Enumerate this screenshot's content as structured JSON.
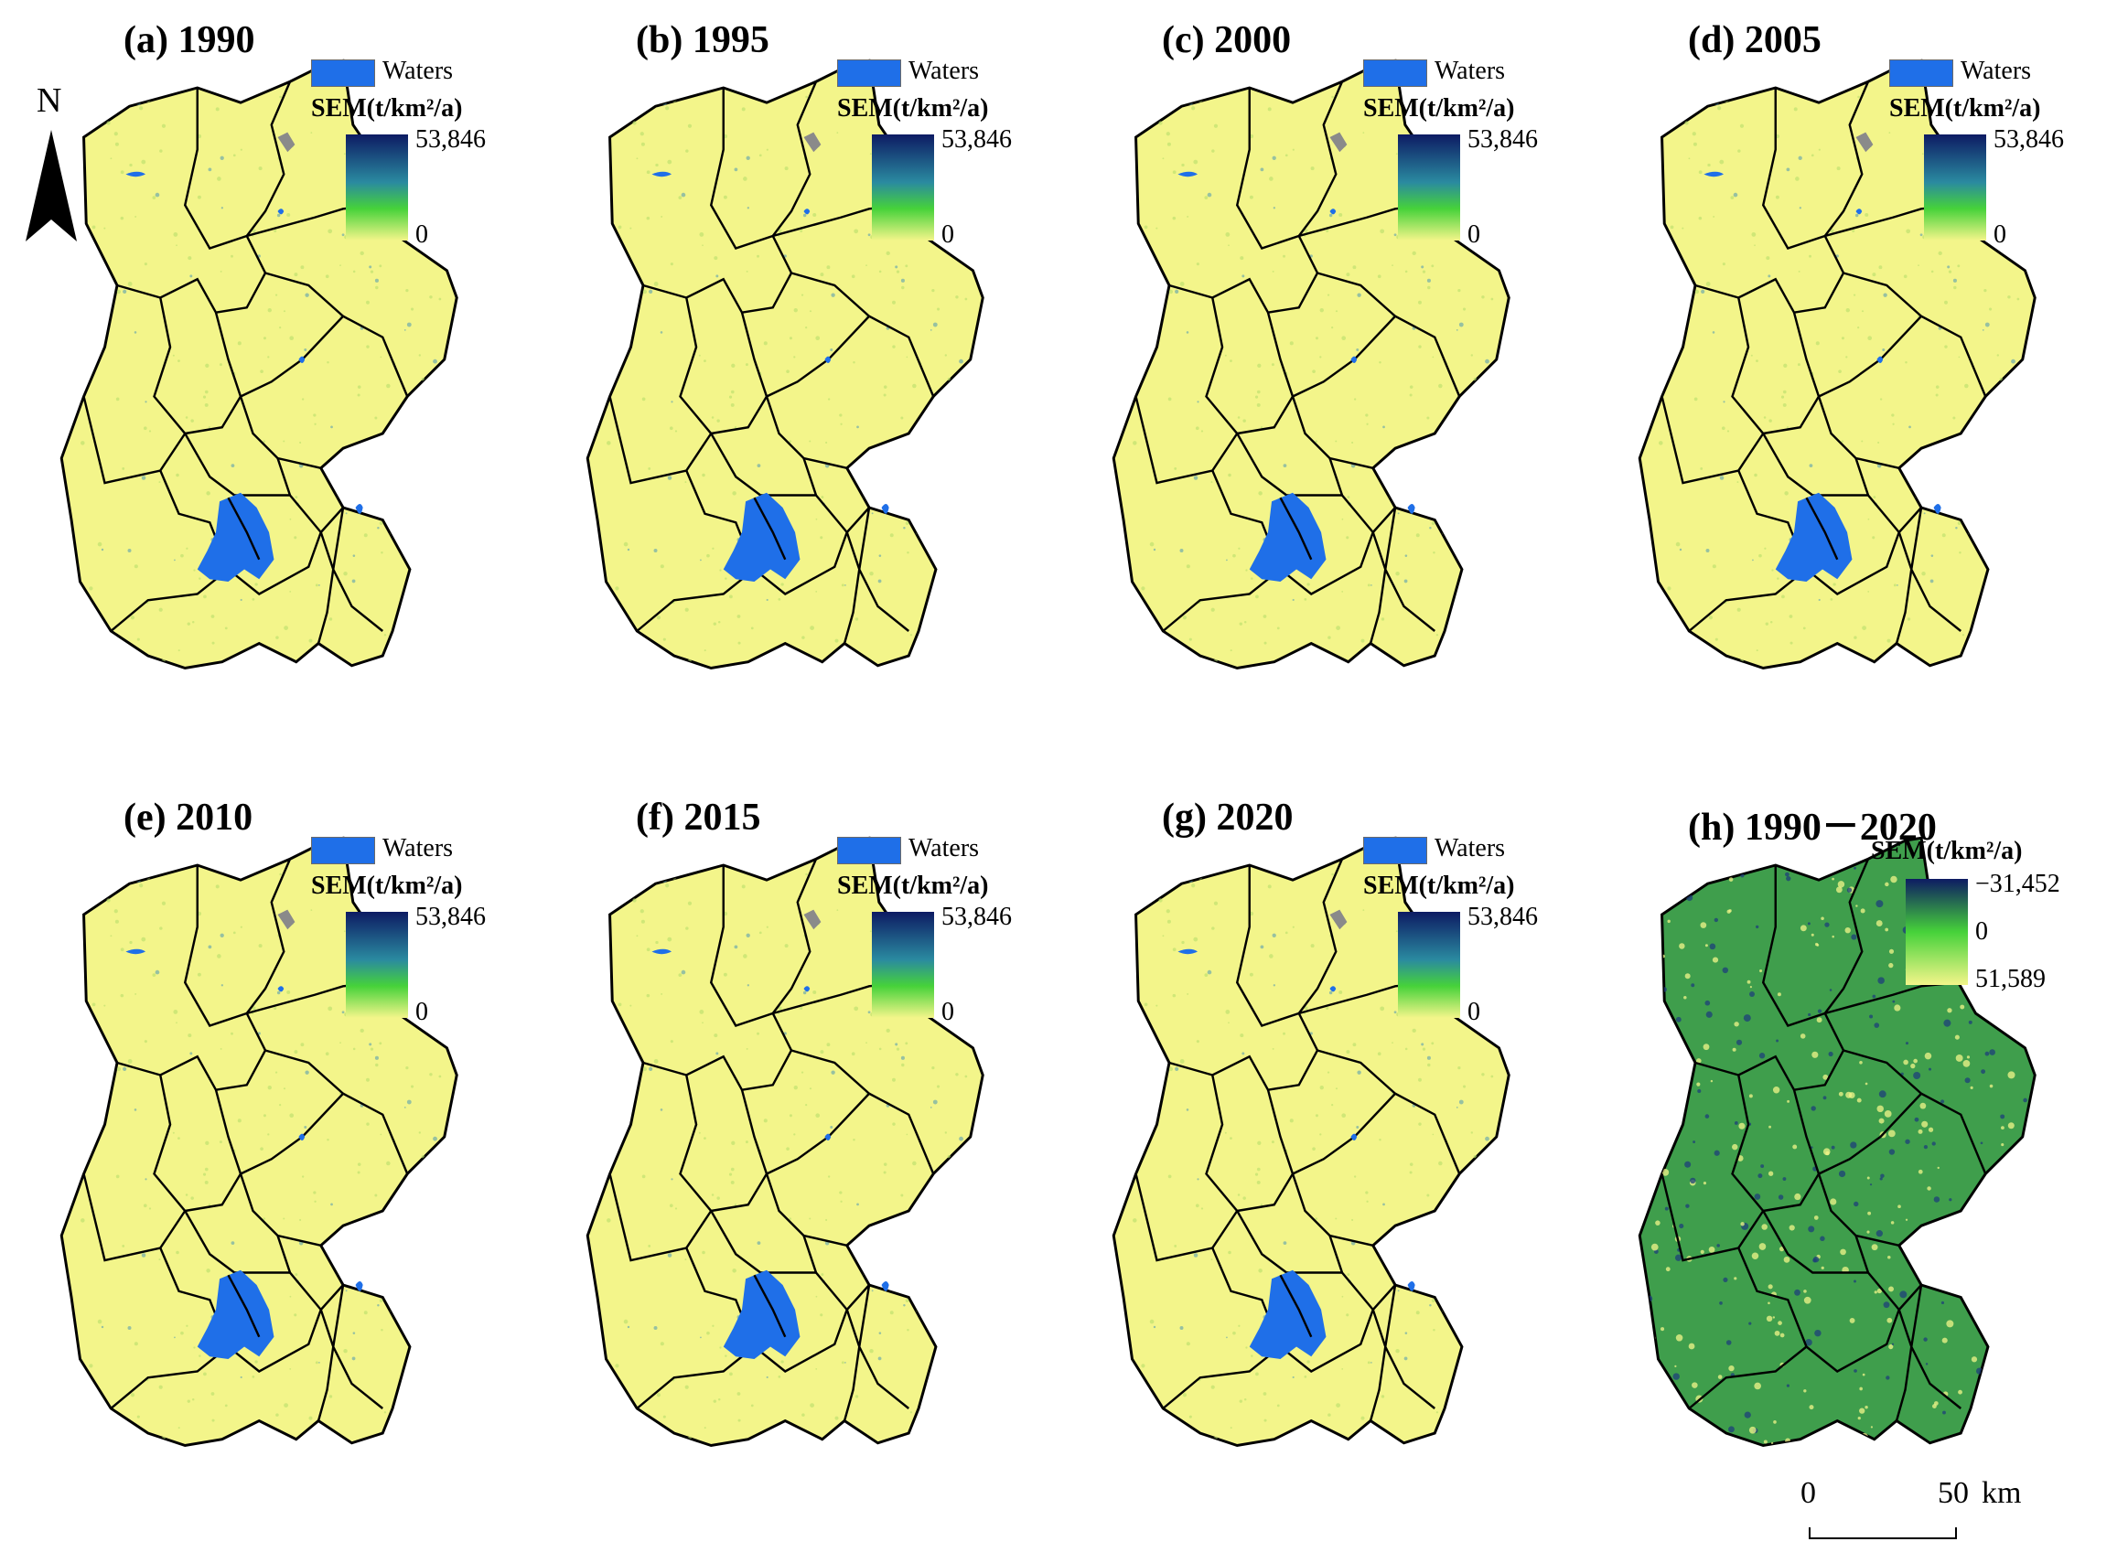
{
  "panels": [
    {
      "title": "(a) 1990",
      "type": "sem"
    },
    {
      "title": "(b) 1995",
      "type": "sem"
    },
    {
      "title": "(c) 2000",
      "type": "sem"
    },
    {
      "title": "(d) 2005",
      "type": "sem"
    },
    {
      "title": "(e) 2010",
      "type": "sem"
    },
    {
      "title": "(f) 2015",
      "type": "sem"
    },
    {
      "title": "(g) 2020",
      "type": "sem"
    },
    {
      "title": "(h) 1990－2020",
      "type": "change"
    }
  ],
  "legend": {
    "waters_label": "Waters",
    "sem_title": "SEM(t/km²/a)",
    "sem_max": "53,846",
    "sem_min": "0",
    "change_top": "−31,452",
    "change_mid": "0",
    "change_bottom": "51,589"
  },
  "north_arrow": {
    "label": "N"
  },
  "scale_bar": {
    "start": "0",
    "end": "50",
    "unit": "km"
  },
  "colors": {
    "sem_low": "#f3f58a",
    "sem_mid": "#46d23a",
    "sem_high": "#0d1b63",
    "change_fill": "#3f9e4c",
    "water": "#1f6fe8",
    "boundary": "#000000"
  }
}
